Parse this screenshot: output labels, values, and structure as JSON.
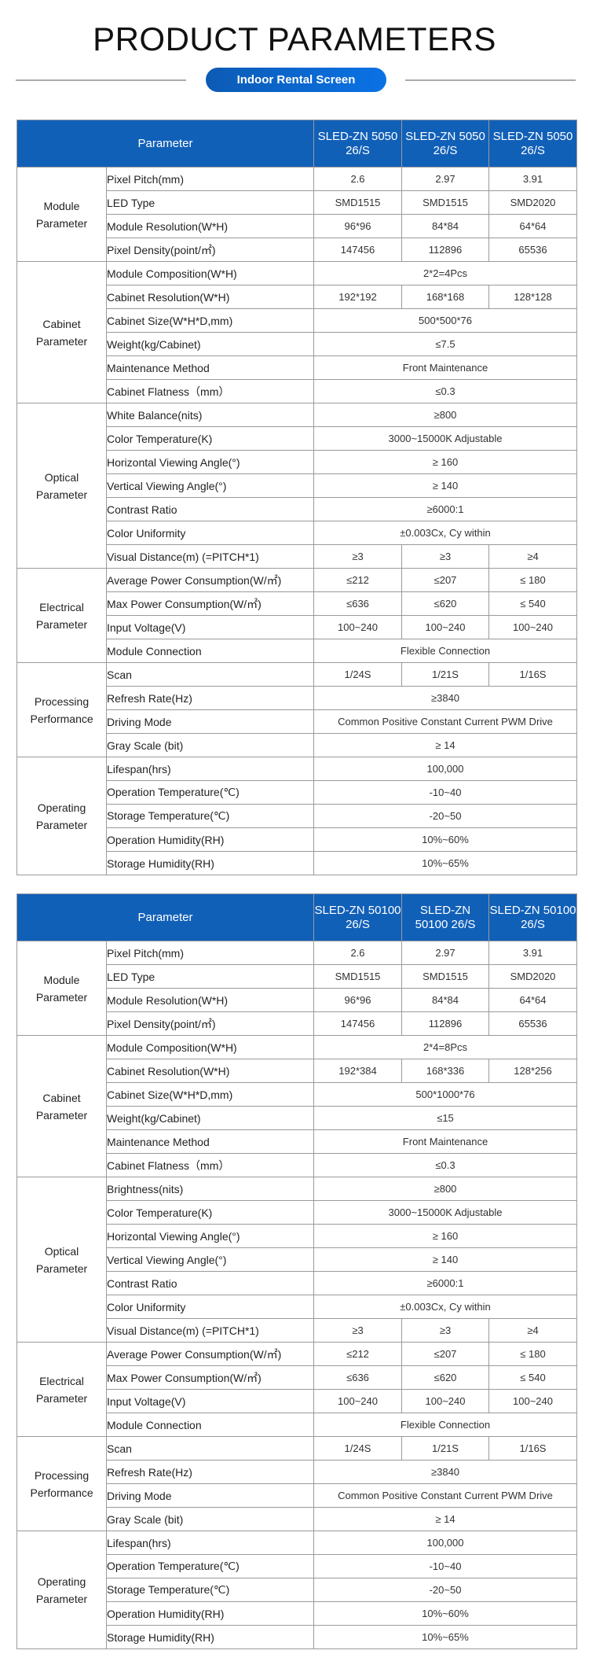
{
  "page": {
    "title": "PRODUCT PARAMETERS",
    "badge": "Indoor Rental Screen",
    "accent_color": "#1160b8"
  },
  "tables": [
    {
      "header": {
        "param": "Parameter",
        "models": [
          "SLED-ZN 5050 26/S",
          "SLED-ZN 5050 26/S",
          "SLED-ZN 5050 26/S"
        ]
      },
      "groups": [
        {
          "name": "Module Parameter",
          "rows": [
            {
              "label": "Pixel Pitch(mm)",
              "values": [
                "2.6",
                "2.97",
                "3.91"
              ]
            },
            {
              "label": "LED Type",
              "values": [
                "SMD1515",
                "SMD1515",
                "SMD2020"
              ]
            },
            {
              "label": "Module Resolution(W*H)",
              "values": [
                "96*96",
                "84*84",
                "64*64"
              ]
            },
            {
              "label": "Pixel Density(point/㎡)",
              "values": [
                "147456",
                "112896",
                "65536"
              ]
            }
          ]
        },
        {
          "name": "Cabinet Parameter",
          "rows": [
            {
              "label": "Module Composition(W*H)",
              "value": "2*2=4Pcs"
            },
            {
              "label": "Cabinet Resolution(W*H)",
              "values": [
                "192*192",
                "168*168",
                "128*128"
              ]
            },
            {
              "label": "Cabinet Size(W*H*D,mm)",
              "value": "500*500*76"
            },
            {
              "label": "Weight(kg/Cabinet)",
              "value": "≤7.5"
            },
            {
              "label": "Maintenance Method",
              "value": "Front Maintenance"
            },
            {
              "label": "Cabinet Flatness（mm）",
              "value": "≤0.3"
            }
          ]
        },
        {
          "name": "Optical Parameter",
          "rows": [
            {
              "label": "White Balance(nits)",
              "value": "≥800"
            },
            {
              "label": "Color Temperature(K)",
              "value": "3000~15000K Adjustable"
            },
            {
              "label": "Horizontal Viewing Angle(°)",
              "value": "≥ 160"
            },
            {
              "label": "Vertical Viewing Angle(°)",
              "value": "≥ 140"
            },
            {
              "label": "Contrast Ratio",
              "value": "≥6000:1"
            },
            {
              "label": "Color Uniformity",
              "value": "±0.003Cx, Cy within"
            },
            {
              "label": "Visual Distance(m) (=PITCH*1)",
              "values": [
                "≥3",
                "≥3",
                "≥4"
              ]
            }
          ]
        },
        {
          "name": "Electrical Parameter",
          "rows": [
            {
              "label": "Average Power Consumption(W/㎡)",
              "values": [
                "≤212",
                "≤207",
                "≤ 180"
              ]
            },
            {
              "label": "Max Power Consumption(W/㎡)",
              "values": [
                "≤636",
                "≤620",
                "≤ 540"
              ]
            },
            {
              "label": "Input Voltage(V)",
              "values": [
                "100~240",
                "100~240",
                "100~240"
              ]
            },
            {
              "label": "Module Connection",
              "value": "Flexible Connection"
            }
          ]
        },
        {
          "name": "Processing Performance",
          "rows": [
            {
              "label": "Scan",
              "values": [
                "1/24S",
                "1/21S",
                "1/16S"
              ]
            },
            {
              "label": "Refresh Rate(Hz)",
              "value": "≥3840"
            },
            {
              "label": "Driving Mode",
              "value": "Common Positive Constant Current PWM Drive"
            },
            {
              "label": "Gray Scale (bit)",
              "value": "≥ 14"
            }
          ]
        },
        {
          "name": "Operating Parameter",
          "rows": [
            {
              "label": "Lifespan(hrs)",
              "value": "100,000"
            },
            {
              "label": "Operation Temperature(℃)",
              "value": "-10~40"
            },
            {
              "label": "Storage Temperature(℃)",
              "value": "-20~50"
            },
            {
              "label": "Operation Humidity(RH)",
              "value": "10%~60%"
            },
            {
              "label": "Storage Humidity(RH)",
              "value": "10%~65%"
            }
          ]
        }
      ]
    },
    {
      "header": {
        "param": "Parameter",
        "models": [
          "SLED-ZN 50100 26/S",
          "SLED-ZN 50100 26/S",
          "SLED-ZN 50100 26/S"
        ]
      },
      "groups": [
        {
          "name": "Module Parameter",
          "rows": [
            {
              "label": "Pixel Pitch(mm)",
              "values": [
                "2.6",
                "2.97",
                "3.91"
              ]
            },
            {
              "label": "LED Type",
              "values": [
                "SMD1515",
                "SMD1515",
                "SMD2020"
              ]
            },
            {
              "label": "Module Resolution(W*H)",
              "values": [
                "96*96",
                "84*84",
                "64*64"
              ]
            },
            {
              "label": "Pixel Density(point/㎡)",
              "values": [
                "147456",
                "112896",
                "65536"
              ]
            }
          ]
        },
        {
          "name": "Cabinet Parameter",
          "rows": [
            {
              "label": "Module Composition(W*H)",
              "value": "2*4=8Pcs"
            },
            {
              "label": "Cabinet Resolution(W*H)",
              "values": [
                "192*384",
                "168*336",
                "128*256"
              ]
            },
            {
              "label": "Cabinet Size(W*H*D,mm)",
              "value": "500*1000*76"
            },
            {
              "label": "Weight(kg/Cabinet)",
              "value": "≤15"
            },
            {
              "label": "Maintenance Method",
              "value": "Front Maintenance"
            },
            {
              "label": "Cabinet Flatness（mm）",
              "value": "≤0.3"
            }
          ]
        },
        {
          "name": "Optical Parameter",
          "rows": [
            {
              "label": "Brightness(nits)",
              "value": "≥800"
            },
            {
              "label": "Color Temperature(K)",
              "value": "3000~15000K Adjustable"
            },
            {
              "label": "Horizontal Viewing Angle(°)",
              "value": "≥ 160"
            },
            {
              "label": "Vertical Viewing Angle(°)",
              "value": "≥ 140"
            },
            {
              "label": "Contrast Ratio",
              "value": "≥6000:1"
            },
            {
              "label": "Color Uniformity",
              "value": "±0.003Cx, Cy within"
            },
            {
              "label": "Visual Distance(m) (=PITCH*1)",
              "values": [
                "≥3",
                "≥3",
                "≥4"
              ]
            }
          ]
        },
        {
          "name": "Electrical Parameter",
          "rows": [
            {
              "label": "Average Power Consumption(W/㎡)",
              "values": [
                "≤212",
                "≤207",
                "≤ 180"
              ]
            },
            {
              "label": "Max Power Consumption(W/㎡)",
              "values": [
                "≤636",
                "≤620",
                "≤ 540"
              ]
            },
            {
              "label": "Input Voltage(V)",
              "values": [
                "100~240",
                "100~240",
                "100~240"
              ]
            },
            {
              "label": "Module Connection",
              "value": "Flexible Connection"
            }
          ]
        },
        {
          "name": "Processing Performance",
          "rows": [
            {
              "label": "Scan",
              "values": [
                "1/24S",
                "1/21S",
                "1/16S"
              ]
            },
            {
              "label": "Refresh Rate(Hz)",
              "value": "≥3840"
            },
            {
              "label": "Driving Mode",
              "value": "Common Positive Constant Current PWM Drive"
            },
            {
              "label": "Gray Scale (bit)",
              "value": "≥ 14"
            }
          ]
        },
        {
          "name": "Operating Parameter",
          "rows": [
            {
              "label": "Lifespan(hrs)",
              "value": "100,000"
            },
            {
              "label": "Operation Temperature(℃)",
              "value": "-10~40"
            },
            {
              "label": "Storage Temperature(℃)",
              "value": "-20~50"
            },
            {
              "label": "Operation Humidity(RH)",
              "value": "10%~60%"
            },
            {
              "label": "Storage Humidity(RH)",
              "value": "10%~65%"
            }
          ]
        }
      ]
    }
  ]
}
